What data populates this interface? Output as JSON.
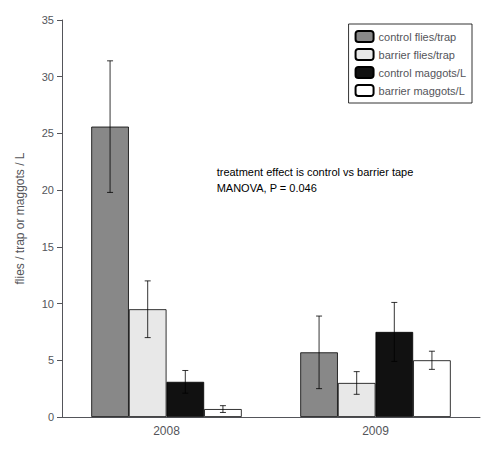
{
  "chart_data": {
    "type": "bar",
    "categories": [
      "2008",
      "2009"
    ],
    "series": [
      {
        "name": "control flies/trap",
        "color": "#888888",
        "values": [
          25.6,
          5.7
        ],
        "errors": [
          5.8,
          3.2
        ]
      },
      {
        "name": "barrier flies/trap",
        "color": "#e8e8e8",
        "values": [
          9.5,
          3.0
        ],
        "errors": [
          2.5,
          1.0
        ]
      },
      {
        "name": "control maggots/L",
        "color": "#111111",
        "values": [
          3.1,
          7.5
        ],
        "errors": [
          1.0,
          2.6
        ]
      },
      {
        "name": "barrier maggots/L",
        "color": "#ffffff",
        "values": [
          0.7,
          5.0
        ],
        "errors": [
          0.3,
          0.8
        ]
      }
    ],
    "ylabel": "flies / trap or maggots / L",
    "ylim": [
      0,
      35
    ],
    "yticks": [
      0,
      5,
      10,
      15,
      20,
      25,
      30,
      35
    ],
    "grid": false,
    "legend": "upper right",
    "annotations": [
      "treatment effect is control vs barrier tape",
      "MANOVA, P = 0.046"
    ]
  }
}
